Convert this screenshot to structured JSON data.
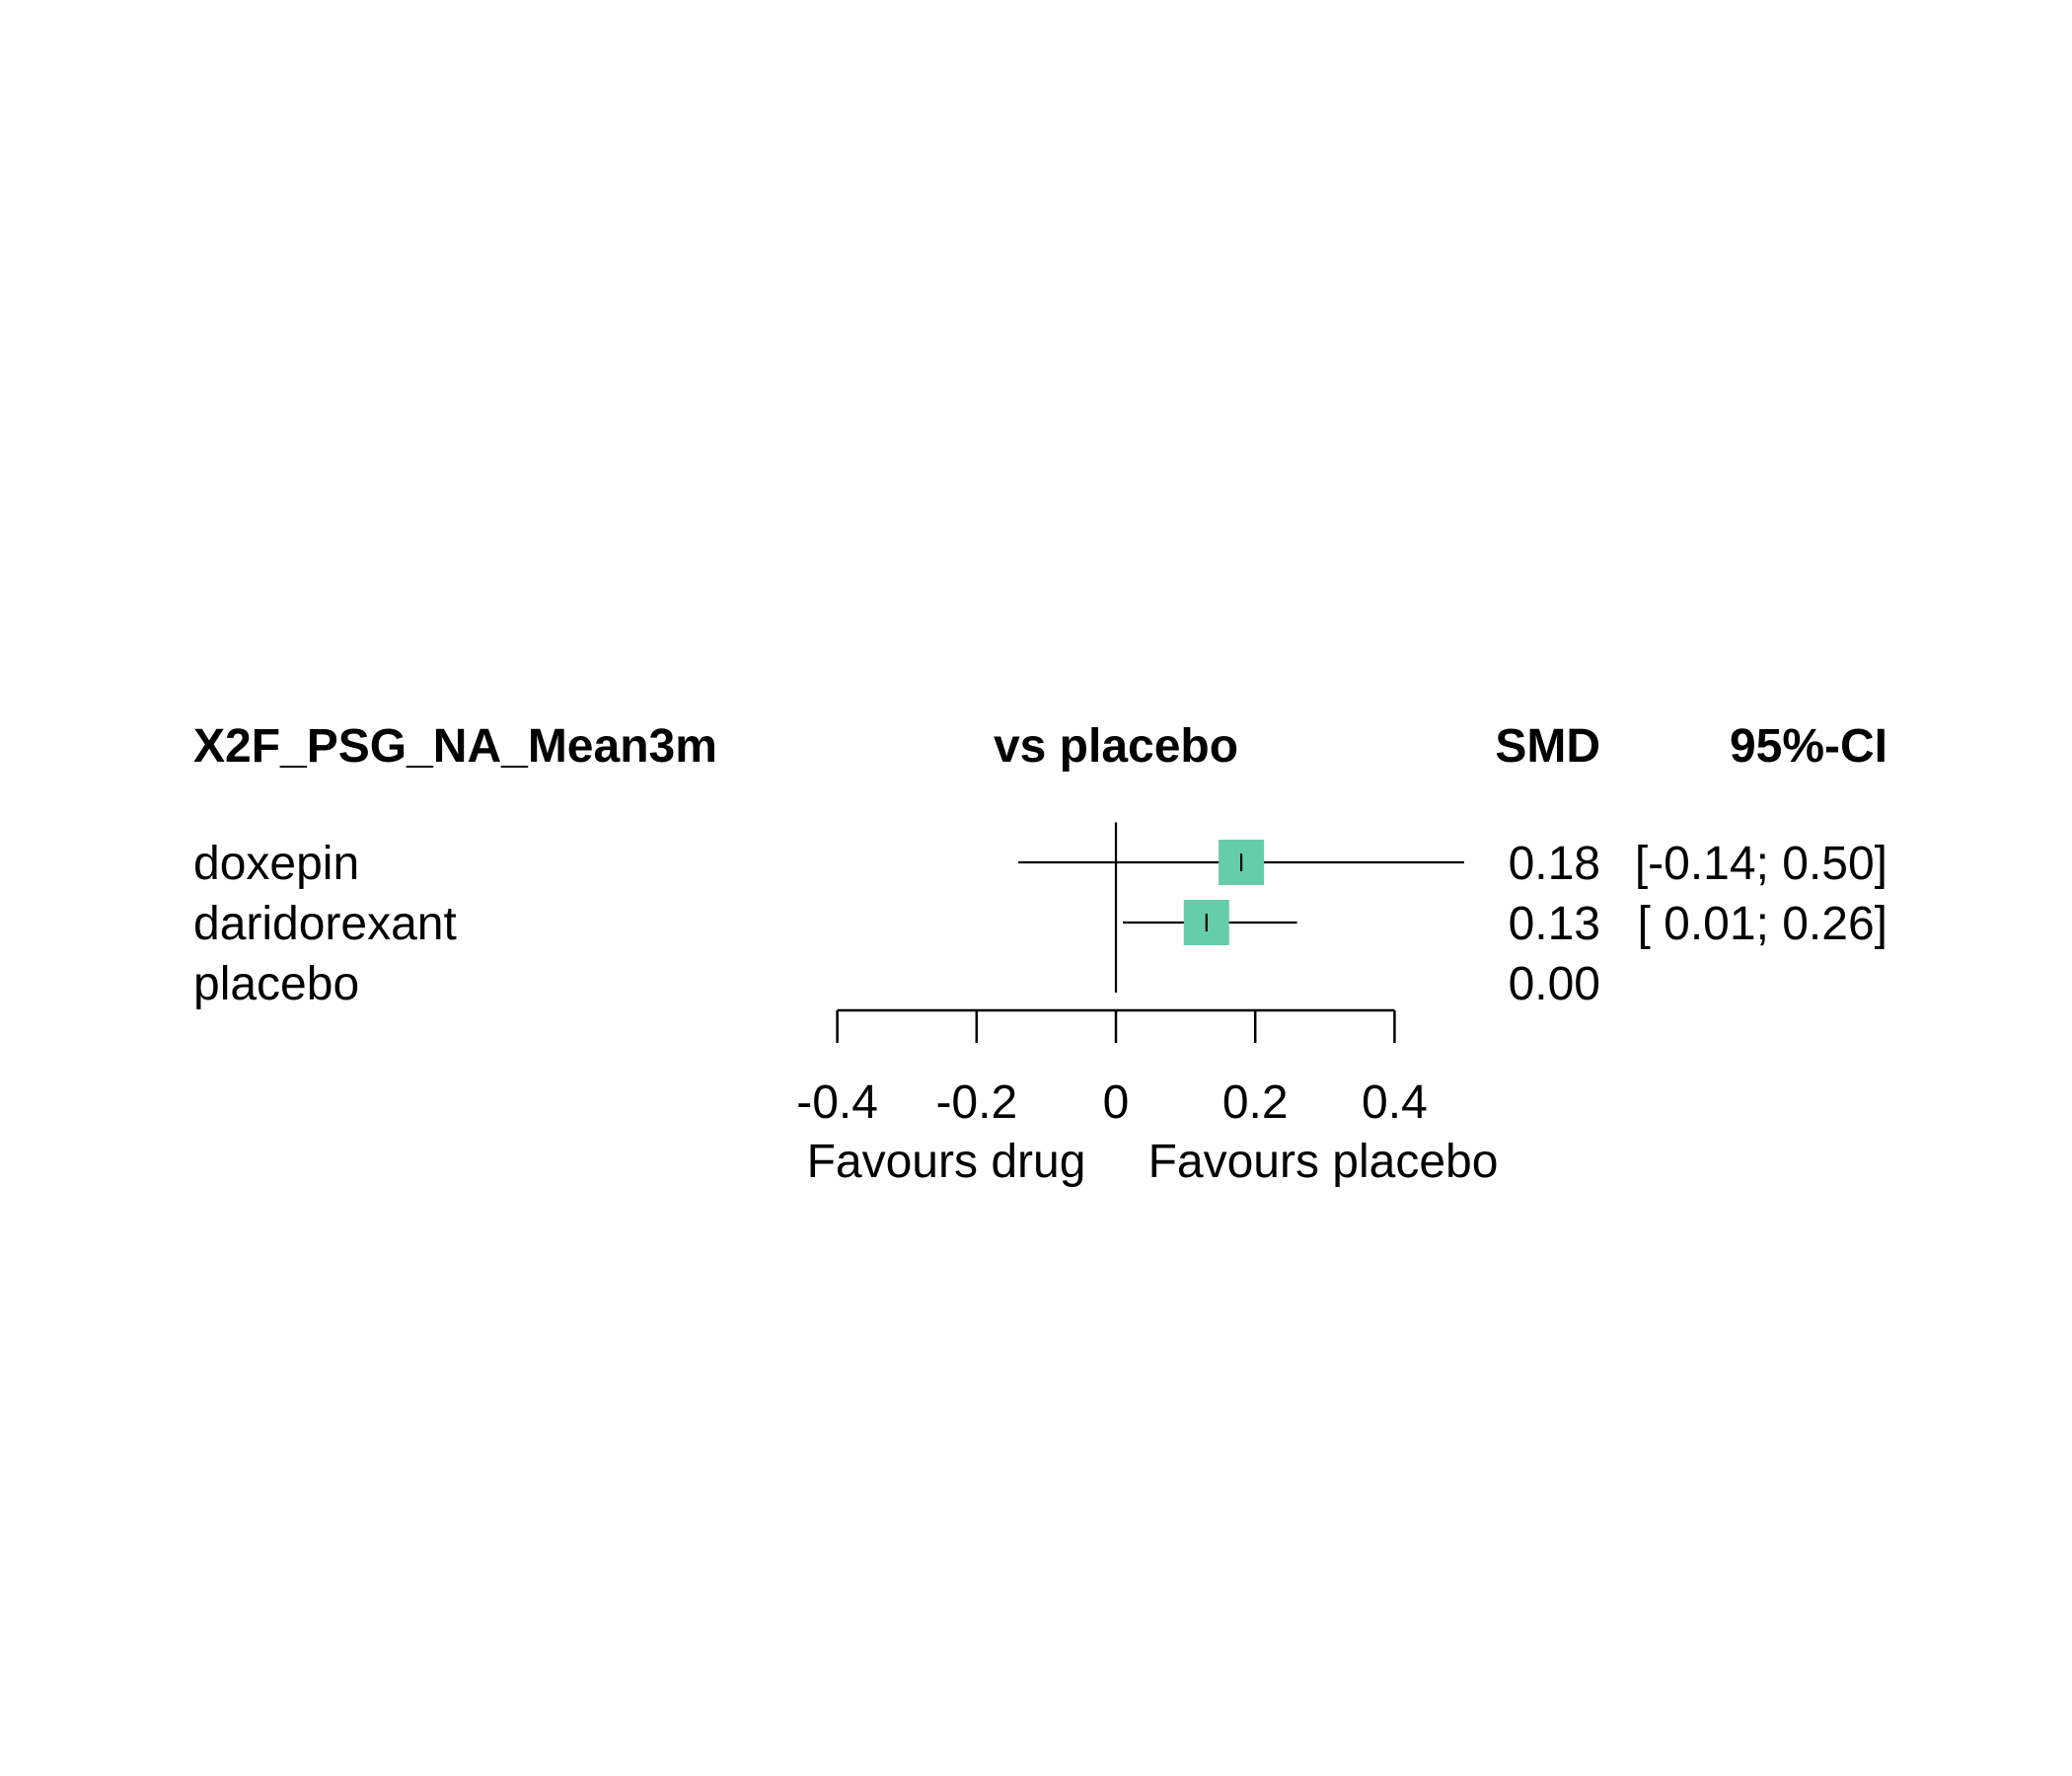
{
  "chart_data": {
    "type": "forest",
    "header": {
      "outcome": "X2F_PSG_NA_Mean3m",
      "comparison": "vs placebo",
      "effect": "SMD",
      "ci": "95%-CI"
    },
    "rows": [
      {
        "label": "doxepin",
        "smd": 0.18,
        "lower": -0.14,
        "upper": 0.5,
        "smd_text": "0.18",
        "ci_text": "[-0.14; 0.50]"
      },
      {
        "label": "daridorexant",
        "smd": 0.13,
        "lower": 0.01,
        "upper": 0.26,
        "smd_text": "0.13",
        "ci_text": "[ 0.01; 0.26]"
      },
      {
        "label": "placebo",
        "smd": 0.0,
        "lower": null,
        "upper": null,
        "smd_text": "0.00",
        "ci_text": ""
      }
    ],
    "x_ticks": [
      -0.4,
      -0.2,
      0,
      0.2,
      0.4
    ],
    "x_tick_labels": [
      "-0.4",
      "-0.2",
      "0",
      "0.2",
      "0.4"
    ],
    "xlim": [
      -0.4,
      0.4
    ],
    "reference_line": 0,
    "left_label": "Favours drug",
    "right_label": "Favours placebo",
    "marker_color": "#66CDAA"
  }
}
